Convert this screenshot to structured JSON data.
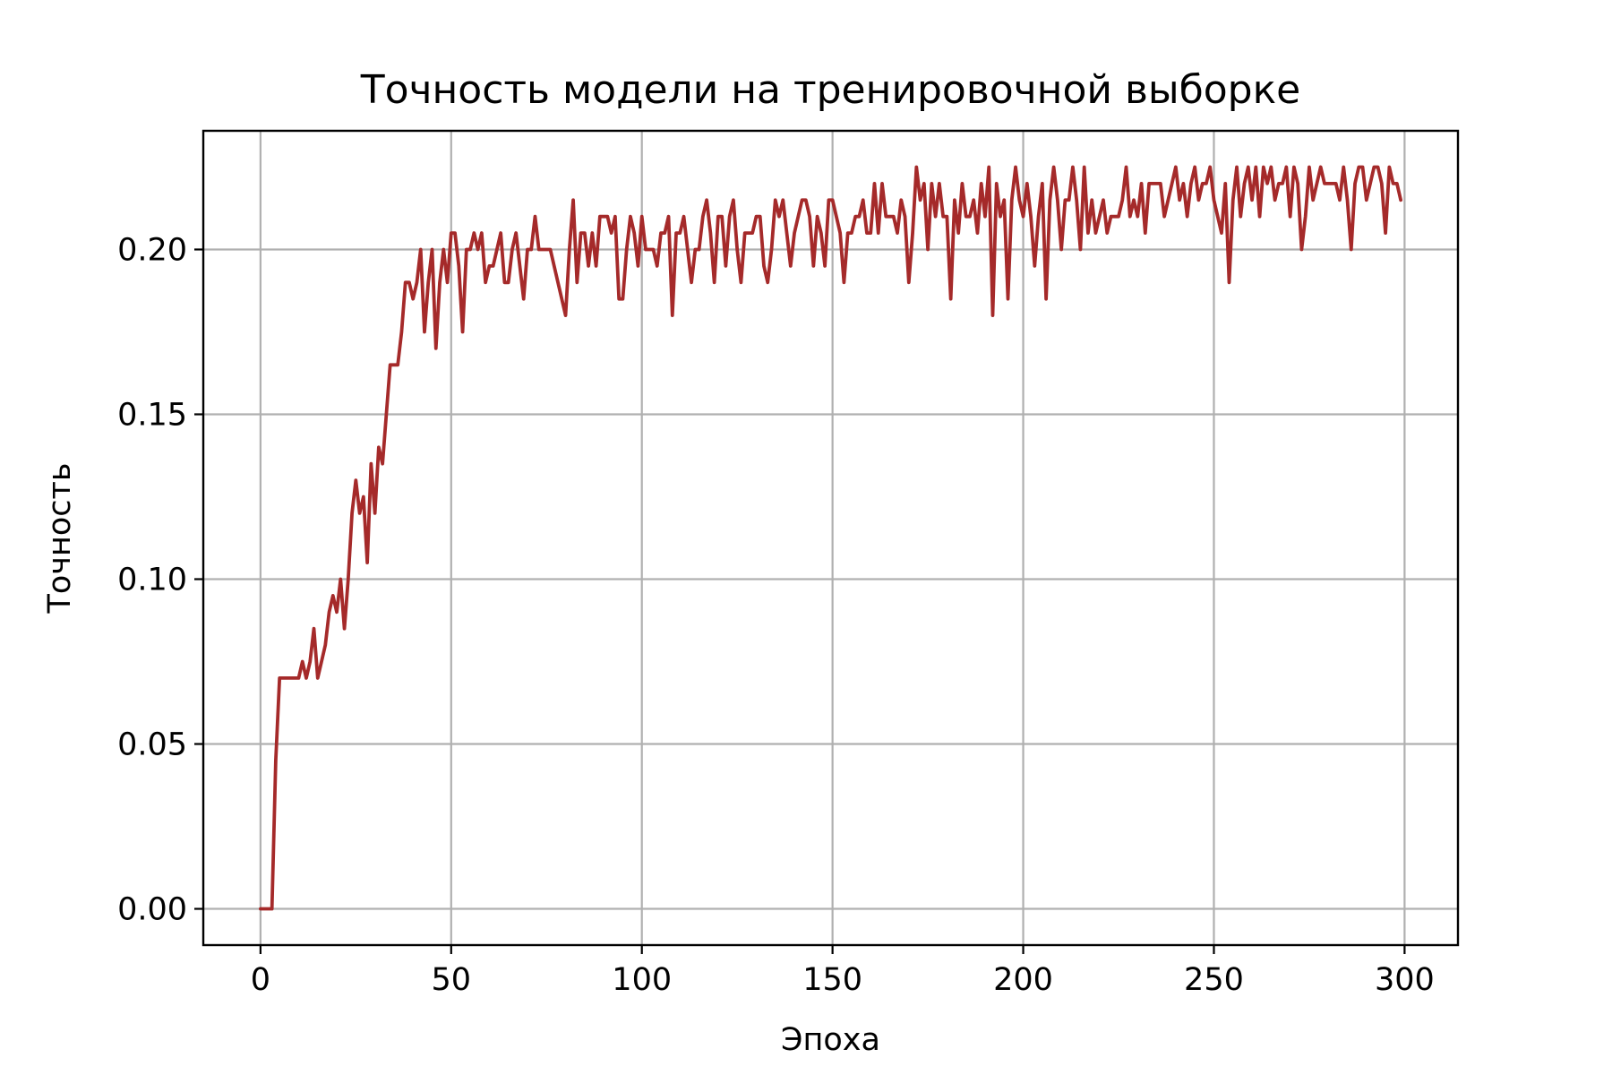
{
  "chart_data": {
    "type": "line",
    "title": "Точность модели на тренировочной выборке",
    "xlabel": "Эпоха",
    "ylabel": "Точность",
    "xlim": [
      -15,
      314
    ],
    "ylim": [
      -0.011,
      0.236
    ],
    "xticks": [
      0,
      50,
      100,
      150,
      200,
      250,
      300
    ],
    "yticks": [
      0.0,
      0.05,
      0.1,
      0.15,
      0.2
    ],
    "xtick_labels": [
      "0",
      "50",
      "100",
      "150",
      "200",
      "250",
      "300"
    ],
    "ytick_labels": [
      "0.00",
      "0.05",
      "0.10",
      "0.15",
      "0.20"
    ],
    "grid": true,
    "color": "#a52a2a",
    "series": [
      {
        "x": [
          0,
          1,
          2,
          3,
          4,
          5,
          6,
          7,
          8,
          9,
          10,
          11,
          12,
          13,
          14,
          15,
          16,
          17,
          18,
          19,
          20,
          21,
          22,
          23,
          24,
          25,
          26,
          27,
          28,
          29,
          30,
          31,
          32,
          33,
          34,
          35,
          36,
          37,
          38,
          39,
          40,
          41,
          42,
          43,
          44,
          45,
          46,
          47,
          48,
          49,
          50,
          51,
          52,
          53,
          54,
          55,
          56,
          57,
          58,
          59,
          60,
          61,
          62,
          63,
          64,
          65,
          66,
          67,
          68,
          69,
          70,
          71,
          72,
          73,
          74,
          75,
          76,
          77,
          78,
          79,
          80,
          81,
          82,
          83,
          84,
          85,
          86,
          87,
          88,
          89,
          90,
          91,
          92,
          93,
          94,
          95,
          96,
          97,
          98,
          99,
          100,
          101,
          102,
          103,
          104,
          105,
          106,
          107,
          108,
          109,
          110,
          111,
          112,
          113,
          114,
          115,
          116,
          117,
          118,
          119,
          120,
          121,
          122,
          123,
          124,
          125,
          126,
          127,
          128,
          129,
          130,
          131,
          132,
          133,
          134,
          135,
          136,
          137,
          138,
          139,
          140,
          141,
          142,
          143,
          144,
          145,
          146,
          147,
          148,
          149,
          150,
          151,
          152,
          153,
          154,
          155,
          156,
          157,
          158,
          159,
          160,
          161,
          162,
          163,
          164,
          165,
          166,
          167,
          168,
          169,
          170,
          171,
          172,
          173,
          174,
          175,
          176,
          177,
          178,
          179,
          180,
          181,
          182,
          183,
          184,
          185,
          186,
          187,
          188,
          189,
          190,
          191,
          192,
          193,
          194,
          195,
          196,
          197,
          198,
          199,
          200,
          201,
          202,
          203,
          204,
          205,
          206,
          207,
          208,
          209,
          210,
          211,
          212,
          213,
          214,
          215,
          216,
          217,
          218,
          219,
          220,
          221,
          222,
          223,
          224,
          225,
          226,
          227,
          228,
          229,
          230,
          231,
          232,
          233,
          234,
          235,
          236,
          237,
          238,
          239,
          240,
          241,
          242,
          243,
          244,
          245,
          246,
          247,
          248,
          249,
          250,
          251,
          252,
          253,
          254,
          255,
          256,
          257,
          258,
          259,
          260,
          261,
          262,
          263,
          264,
          265,
          266,
          267,
          268,
          269,
          270,
          271,
          272,
          273,
          274,
          275,
          276,
          277,
          278,
          279,
          280,
          281,
          282,
          283,
          284,
          285,
          286,
          287,
          288,
          289,
          290,
          291,
          292,
          293,
          294,
          295,
          296,
          297,
          298,
          299
        ],
        "y": [
          0.0,
          0.0,
          0.0,
          0.0,
          0.045,
          0.07,
          0.07,
          0.07,
          0.07,
          0.07,
          0.07,
          0.075,
          0.07,
          0.075,
          0.085,
          0.07,
          0.075,
          0.08,
          0.09,
          0.095,
          0.09,
          0.1,
          0.085,
          0.1,
          0.12,
          0.13,
          0.12,
          0.125,
          0.105,
          0.135,
          0.12,
          0.14,
          0.135,
          0.15,
          0.165,
          0.165,
          0.165,
          0.175,
          0.19,
          0.19,
          0.185,
          0.19,
          0.2,
          0.175,
          0.19,
          0.2,
          0.17,
          0.19,
          0.2,
          0.19,
          0.205,
          0.205,
          0.195,
          0.175,
          0.2,
          0.2,
          0.205,
          0.2,
          0.205,
          0.19,
          0.195,
          0.195,
          0.2,
          0.205,
          0.19,
          0.19,
          0.2,
          0.205,
          0.195,
          0.185,
          0.2,
          0.2,
          0.21,
          0.2,
          0.2,
          0.2,
          0.2,
          0.195,
          0.19,
          0.185,
          0.18,
          0.2,
          0.215,
          0.19,
          0.205,
          0.205,
          0.195,
          0.205,
          0.195,
          0.21,
          0.21,
          0.21,
          0.205,
          0.21,
          0.185,
          0.185,
          0.2,
          0.21,
          0.205,
          0.195,
          0.21,
          0.2,
          0.2,
          0.2,
          0.195,
          0.205,
          0.205,
          0.21,
          0.18,
          0.205,
          0.205,
          0.21,
          0.2,
          0.19,
          0.2,
          0.2,
          0.21,
          0.215,
          0.205,
          0.19,
          0.21,
          0.21,
          0.195,
          0.21,
          0.215,
          0.2,
          0.19,
          0.205,
          0.205,
          0.205,
          0.21,
          0.21,
          0.195,
          0.19,
          0.2,
          0.215,
          0.21,
          0.215,
          0.205,
          0.195,
          0.205,
          0.21,
          0.215,
          0.215,
          0.21,
          0.195,
          0.21,
          0.205,
          0.195,
          0.215,
          0.215,
          0.21,
          0.205,
          0.19,
          0.205,
          0.205,
          0.21,
          0.21,
          0.215,
          0.205,
          0.205,
          0.22,
          0.205,
          0.22,
          0.21,
          0.21,
          0.21,
          0.205,
          0.215,
          0.21,
          0.19,
          0.205,
          0.225,
          0.215,
          0.22,
          0.2,
          0.22,
          0.21,
          0.22,
          0.21,
          0.21,
          0.185,
          0.215,
          0.205,
          0.22,
          0.21,
          0.21,
          0.215,
          0.205,
          0.22,
          0.21,
          0.225,
          0.18,
          0.22,
          0.21,
          0.215,
          0.185,
          0.215,
          0.225,
          0.215,
          0.21,
          0.22,
          0.21,
          0.195,
          0.21,
          0.22,
          0.185,
          0.215,
          0.225,
          0.215,
          0.2,
          0.215,
          0.215,
          0.225,
          0.215,
          0.2,
          0.225,
          0.205,
          0.215,
          0.205,
          0.21,
          0.215,
          0.205,
          0.21,
          0.21,
          0.21,
          0.215,
          0.225,
          0.21,
          0.215,
          0.21,
          0.22,
          0.205,
          0.22,
          0.22,
          0.22,
          0.22,
          0.21,
          0.215,
          0.22,
          0.225,
          0.215,
          0.22,
          0.21,
          0.22,
          0.225,
          0.215,
          0.22,
          0.22,
          0.225,
          0.215,
          0.21,
          0.205,
          0.22,
          0.19,
          0.215,
          0.225,
          0.21,
          0.22,
          0.225,
          0.215,
          0.225,
          0.21,
          0.225,
          0.22,
          0.225,
          0.215,
          0.22,
          0.22,
          0.225,
          0.21,
          0.225,
          0.22,
          0.2,
          0.21,
          0.225,
          0.215,
          0.22,
          0.225,
          0.22,
          0.22,
          0.22,
          0.22,
          0.215,
          0.225,
          0.215,
          0.2,
          0.22,
          0.225,
          0.225,
          0.215,
          0.22,
          0.225,
          0.225,
          0.22,
          0.205,
          0.225,
          0.22,
          0.22,
          0.215
        ]
      }
    ]
  }
}
